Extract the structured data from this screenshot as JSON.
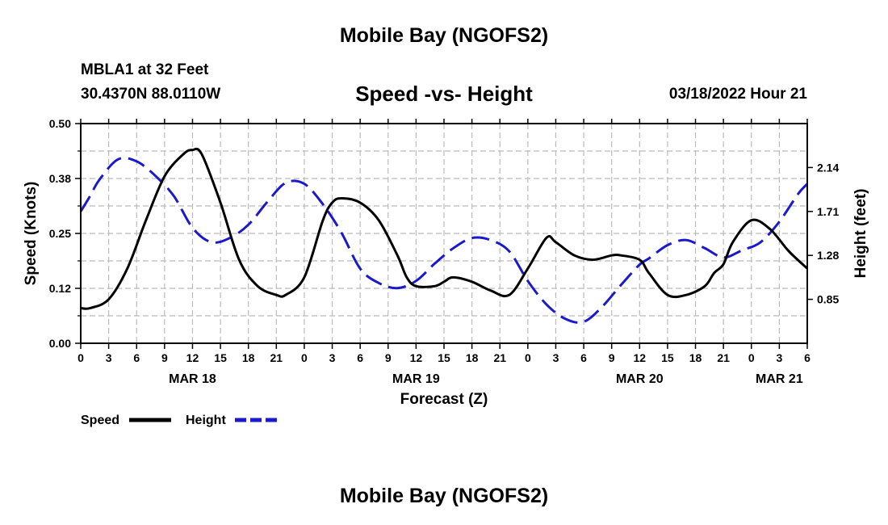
{
  "titles": {
    "main": "Mobile Bay (NGOFS2)",
    "station": "MBLA1 at 32 Feet",
    "coords": "30.4370N  88.0110W",
    "subtitle": "Speed -vs- Height",
    "datetime": "03/18/2022 Hour 21",
    "bottom": "Mobile Bay (NGOFS2)"
  },
  "colors": {
    "speed": "#000000",
    "height": "#1a1acc",
    "grid": "#bbbbbb"
  },
  "chart_data": {
    "type": "line",
    "title": "Speed -vs- Height",
    "xlabel": "Forecast (Z)",
    "ylabel_left": "Speed (Knots)",
    "ylabel_right": "Height (feet)",
    "x_unit": "hours since 03/18 00Z",
    "xlim": [
      0,
      78
    ],
    "ylim_left": [
      0,
      0.5
    ],
    "ylim_right": [
      0.42,
      2.57
    ],
    "grid": true,
    "legend_position": "bottom-left",
    "x_ticks": [
      {
        "x": 0,
        "label": "0"
      },
      {
        "x": 3,
        "label": "3"
      },
      {
        "x": 6,
        "label": "6"
      },
      {
        "x": 9,
        "label": "9"
      },
      {
        "x": 12,
        "label": "12"
      },
      {
        "x": 15,
        "label": "15"
      },
      {
        "x": 18,
        "label": "18"
      },
      {
        "x": 21,
        "label": "21"
      },
      {
        "x": 24,
        "label": "0"
      },
      {
        "x": 27,
        "label": "3"
      },
      {
        "x": 30,
        "label": "6"
      },
      {
        "x": 33,
        "label": "9"
      },
      {
        "x": 36,
        "label": "12"
      },
      {
        "x": 39,
        "label": "15"
      },
      {
        "x": 42,
        "label": "18"
      },
      {
        "x": 45,
        "label": "21"
      },
      {
        "x": 48,
        "label": "0"
      },
      {
        "x": 51,
        "label": "3"
      },
      {
        "x": 54,
        "label": "6"
      },
      {
        "x": 57,
        "label": "9"
      },
      {
        "x": 60,
        "label": "12"
      },
      {
        "x": 63,
        "label": "15"
      },
      {
        "x": 66,
        "label": "18"
      },
      {
        "x": 69,
        "label": "21"
      },
      {
        "x": 72,
        "label": "0"
      },
      {
        "x": 75,
        "label": "3"
      },
      {
        "x": 78,
        "label": "6"
      }
    ],
    "date_labels": [
      {
        "x": 12,
        "label": "MAR 18"
      },
      {
        "x": 36,
        "label": "MAR 19"
      },
      {
        "x": 60,
        "label": "MAR 20"
      },
      {
        "x": 75,
        "label": "MAR 21"
      }
    ],
    "y_ticks_left": [
      {
        "value": 0.0,
        "label": "0.00"
      },
      {
        "value": 0.125,
        "label": "0.12"
      },
      {
        "value": 0.25,
        "label": "0.25"
      },
      {
        "value": 0.375,
        "label": "0.38"
      },
      {
        "value": 0.5,
        "label": "0.50"
      }
    ],
    "y_ticks_right": [
      {
        "value": 0.85,
        "label": "0.85"
      },
      {
        "value": 1.28,
        "label": "1.28"
      },
      {
        "value": 1.71,
        "label": "1.71"
      },
      {
        "value": 2.14,
        "label": "2.14"
      }
    ],
    "series": [
      {
        "name": "Speed",
        "axis": "left",
        "style": "solid",
        "x": [
          0,
          1,
          3,
          5,
          7,
          9,
          11,
          12,
          13,
          15,
          17,
          19,
          21,
          22,
          24,
          26,
          27,
          28,
          30,
          32,
          34,
          35,
          36,
          38,
          39,
          40,
          42,
          44,
          46,
          48,
          50,
          51,
          53,
          55,
          57,
          58,
          60,
          61,
          63,
          65,
          67,
          68,
          69,
          70,
          72,
          74,
          76,
          78
        ],
        "y": [
          0.08,
          0.08,
          0.1,
          0.17,
          0.28,
          0.38,
          0.43,
          0.44,
          0.43,
          0.32,
          0.19,
          0.13,
          0.11,
          0.11,
          0.15,
          0.28,
          0.32,
          0.33,
          0.32,
          0.28,
          0.2,
          0.15,
          0.13,
          0.13,
          0.14,
          0.15,
          0.14,
          0.12,
          0.11,
          0.17,
          0.24,
          0.23,
          0.2,
          0.19,
          0.2,
          0.2,
          0.19,
          0.16,
          0.11,
          0.11,
          0.13,
          0.16,
          0.18,
          0.23,
          0.28,
          0.26,
          0.21,
          0.17
        ]
      },
      {
        "name": "Height",
        "axis": "right",
        "style": "dashed",
        "x": [
          0,
          1,
          2,
          4,
          6,
          8,
          10,
          12,
          14,
          16,
          18,
          20,
          22,
          24,
          26,
          28,
          30,
          32,
          34,
          36,
          38,
          40,
          42,
          44,
          46,
          48,
          50,
          52,
          54,
          56,
          58,
          60,
          61,
          63,
          65,
          67,
          69,
          71,
          73,
          75,
          77,
          78
        ],
        "y": [
          1.71,
          1.86,
          2.02,
          2.22,
          2.2,
          2.06,
          1.86,
          1.55,
          1.41,
          1.45,
          1.58,
          1.8,
          1.99,
          1.98,
          1.78,
          1.5,
          1.15,
          1.01,
          0.96,
          1.03,
          1.2,
          1.35,
          1.45,
          1.43,
          1.32,
          1.03,
          0.8,
          0.66,
          0.63,
          0.78,
          0.99,
          1.19,
          1.25,
          1.38,
          1.43,
          1.35,
          1.26,
          1.33,
          1.41,
          1.61,
          1.88,
          1.98
        ]
      }
    ],
    "legend": [
      {
        "label": "Speed",
        "style": "solid"
      },
      {
        "label": "Height",
        "style": "dashed"
      }
    ]
  }
}
